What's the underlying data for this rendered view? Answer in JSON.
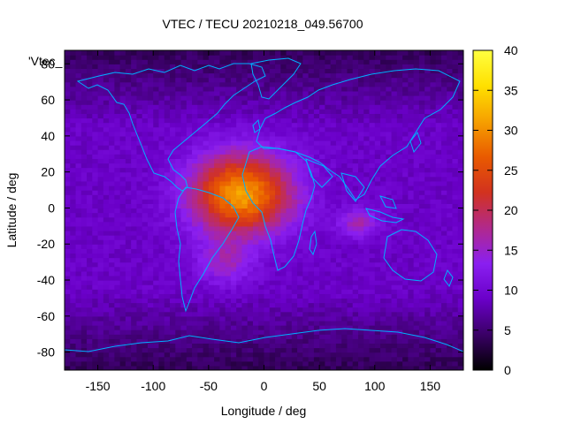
{
  "chart_data": {
    "type": "heatmap",
    "title": "VTEC / TECU 20210218_049.56700",
    "xlabel": "Longitude / deg",
    "ylabel": "Latitude / deg",
    "legend_key": "'Vtec_",
    "xlim": [
      -180,
      180
    ],
    "ylim": [
      -90,
      87.5
    ],
    "x_ticks": [
      -150,
      -100,
      -50,
      0,
      50,
      100,
      150
    ],
    "y_ticks": [
      -80,
      -60,
      -40,
      -20,
      0,
      20,
      40,
      60,
      80
    ],
    "colorbar": {
      "range": [
        0,
        40
      ],
      "ticks": [
        0,
        5,
        10,
        15,
        20,
        25,
        30,
        35,
        40
      ],
      "palette": [
        "#000000",
        "#3a0066",
        "#6a00c8",
        "#8a1ff0",
        "#b1298c",
        "#d2321f",
        "#e95a00",
        "#f6a000",
        "#ffe000",
        "#ffff40"
      ]
    },
    "grid": {
      "dlon": 5,
      "dlat": 2.5
    },
    "features": {
      "background_level": 9,
      "crest": {
        "lon": -20,
        "lat": 8,
        "peak": 31,
        "lon_spread": 45,
        "lat_spread": 22
      },
      "southern_crest": {
        "lon": -35,
        "lat": -30,
        "peak": 6
      },
      "asia_spot": {
        "lon": 85,
        "lat": -8,
        "peak": 7
      },
      "polar_minimum": 3
    },
    "map_overlay": "coastlines",
    "coastline_color": "#00b0ff"
  }
}
